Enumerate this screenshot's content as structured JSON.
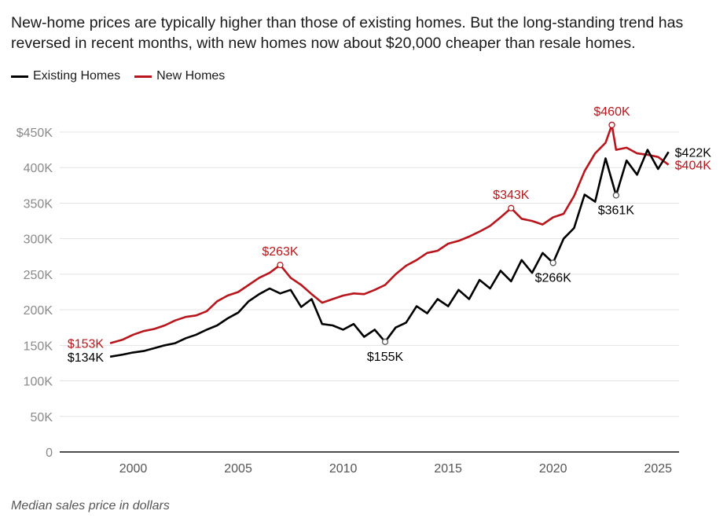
{
  "title": "",
  "subtitle": "New-home prices are typically higher than those of existing homes. But the long-standing trend has reversed in recent months, with new homes now about $20,000 cheaper than resale homes.",
  "note": "Median sales price in dollars",
  "legend": {
    "existing": "Existing Homes",
    "new": "New Homes"
  },
  "colors": {
    "existing": "#000000",
    "new": "#b8161c",
    "grid": "#e3e3e3",
    "tick": "#8a8a8a"
  },
  "chart_data": {
    "type": "line",
    "xlim": [
      1996.5,
      2026
    ],
    "ylim": [
      0,
      450000
    ],
    "x_ticks": [
      {
        "value": 2000,
        "label": "2000"
      },
      {
        "value": 2005,
        "label": "2005"
      },
      {
        "value": 2010,
        "label": "2010"
      },
      {
        "value": 2015,
        "label": "2015"
      },
      {
        "value": 2020,
        "label": "2020"
      },
      {
        "value": 2025,
        "label": "2025"
      }
    ],
    "y_ticks": [
      {
        "value": 0,
        "label": "0"
      },
      {
        "value": 50000,
        "label": "50K"
      },
      {
        "value": 100000,
        "label": "100K"
      },
      {
        "value": 150000,
        "label": "150K"
      },
      {
        "value": 200000,
        "label": "200K"
      },
      {
        "value": 250000,
        "label": "250K"
      },
      {
        "value": 300000,
        "label": "300K"
      },
      {
        "value": 350000,
        "label": "350K"
      },
      {
        "value": 400000,
        "label": "400K"
      },
      {
        "value": 450000,
        "label": "$450K"
      }
    ],
    "grid": true,
    "legend_position": "top-left",
    "series": [
      {
        "name": "Existing Homes",
        "color_key": "existing",
        "points": [
          [
            1998.9,
            134000
          ],
          [
            1999.5,
            137000
          ],
          [
            2000.0,
            140000
          ],
          [
            2000.5,
            142000
          ],
          [
            2001.0,
            146000
          ],
          [
            2001.5,
            150000
          ],
          [
            2002.0,
            153000
          ],
          [
            2002.5,
            160000
          ],
          [
            2003.0,
            165000
          ],
          [
            2003.5,
            172000
          ],
          [
            2004.0,
            178000
          ],
          [
            2004.5,
            188000
          ],
          [
            2005.0,
            196000
          ],
          [
            2005.5,
            212000
          ],
          [
            2006.0,
            222000
          ],
          [
            2006.5,
            230000
          ],
          [
            2007.0,
            223000
          ],
          [
            2007.5,
            228000
          ],
          [
            2008.0,
            204000
          ],
          [
            2008.5,
            215000
          ],
          [
            2009.0,
            180000
          ],
          [
            2009.5,
            178000
          ],
          [
            2010.0,
            172000
          ],
          [
            2010.5,
            180000
          ],
          [
            2011.0,
            162000
          ],
          [
            2011.5,
            172000
          ],
          [
            2012.0,
            155000
          ],
          [
            2012.5,
            175000
          ],
          [
            2013.0,
            182000
          ],
          [
            2013.5,
            205000
          ],
          [
            2014.0,
            195000
          ],
          [
            2014.5,
            215000
          ],
          [
            2015.0,
            205000
          ],
          [
            2015.5,
            228000
          ],
          [
            2016.0,
            215000
          ],
          [
            2016.5,
            242000
          ],
          [
            2017.0,
            230000
          ],
          [
            2017.5,
            255000
          ],
          [
            2018.0,
            240000
          ],
          [
            2018.5,
            270000
          ],
          [
            2019.0,
            252000
          ],
          [
            2019.5,
            280000
          ],
          [
            2020.0,
            266000
          ],
          [
            2020.5,
            300000
          ],
          [
            2021.0,
            315000
          ],
          [
            2021.5,
            362000
          ],
          [
            2022.0,
            352000
          ],
          [
            2022.5,
            413000
          ],
          [
            2023.0,
            361000
          ],
          [
            2023.5,
            410000
          ],
          [
            2024.0,
            390000
          ],
          [
            2024.5,
            425000
          ],
          [
            2025.0,
            398000
          ],
          [
            2025.5,
            422000
          ]
        ],
        "callouts": [
          {
            "x": 1998.9,
            "y": 134000,
            "label": "$134K",
            "position": "left"
          },
          {
            "x": 2012.0,
            "y": 155000,
            "label": "$155K",
            "position": "below"
          },
          {
            "x": 2020.0,
            "y": 266000,
            "label": "$266K",
            "position": "below"
          },
          {
            "x": 2023.0,
            "y": 361000,
            "label": "$361K",
            "position": "below"
          },
          {
            "x": 2025.5,
            "y": 422000,
            "label": "$422K",
            "position": "right"
          }
        ]
      },
      {
        "name": "New Homes",
        "color_key": "new",
        "points": [
          [
            1998.9,
            153000
          ],
          [
            1999.5,
            158000
          ],
          [
            2000.0,
            165000
          ],
          [
            2000.5,
            170000
          ],
          [
            2001.0,
            173000
          ],
          [
            2001.5,
            178000
          ],
          [
            2002.0,
            185000
          ],
          [
            2002.5,
            190000
          ],
          [
            2003.0,
            192000
          ],
          [
            2003.5,
            198000
          ],
          [
            2004.0,
            212000
          ],
          [
            2004.5,
            220000
          ],
          [
            2005.0,
            225000
          ],
          [
            2005.5,
            235000
          ],
          [
            2006.0,
            245000
          ],
          [
            2006.5,
            252000
          ],
          [
            2007.0,
            263000
          ],
          [
            2007.5,
            245000
          ],
          [
            2008.0,
            235000
          ],
          [
            2008.5,
            222000
          ],
          [
            2009.0,
            210000
          ],
          [
            2009.5,
            215000
          ],
          [
            2010.0,
            220000
          ],
          [
            2010.5,
            223000
          ],
          [
            2011.0,
            222000
          ],
          [
            2011.5,
            228000
          ],
          [
            2012.0,
            235000
          ],
          [
            2012.5,
            250000
          ],
          [
            2013.0,
            262000
          ],
          [
            2013.5,
            270000
          ],
          [
            2014.0,
            280000
          ],
          [
            2014.5,
            283000
          ],
          [
            2015.0,
            293000
          ],
          [
            2015.5,
            297000
          ],
          [
            2016.0,
            303000
          ],
          [
            2016.5,
            310000
          ],
          [
            2017.0,
            318000
          ],
          [
            2017.5,
            330000
          ],
          [
            2018.0,
            343000
          ],
          [
            2018.5,
            328000
          ],
          [
            2019.0,
            325000
          ],
          [
            2019.5,
            320000
          ],
          [
            2020.0,
            330000
          ],
          [
            2020.5,
            335000
          ],
          [
            2021.0,
            360000
          ],
          [
            2021.5,
            395000
          ],
          [
            2022.0,
            420000
          ],
          [
            2022.5,
            435000
          ],
          [
            2022.8,
            460000
          ],
          [
            2023.0,
            425000
          ],
          [
            2023.5,
            428000
          ],
          [
            2024.0,
            420000
          ],
          [
            2024.5,
            418000
          ],
          [
            2025.0,
            415000
          ],
          [
            2025.5,
            404000
          ]
        ],
        "callouts": [
          {
            "x": 1998.9,
            "y": 153000,
            "label": "$153K",
            "position": "left"
          },
          {
            "x": 2007.0,
            "y": 263000,
            "label": "$263K",
            "position": "above"
          },
          {
            "x": 2018.0,
            "y": 343000,
            "label": "$343K",
            "position": "above"
          },
          {
            "x": 2022.8,
            "y": 460000,
            "label": "$460K",
            "position": "above"
          },
          {
            "x": 2025.5,
            "y": 404000,
            "label": "$404K",
            "position": "right"
          }
        ]
      }
    ]
  }
}
